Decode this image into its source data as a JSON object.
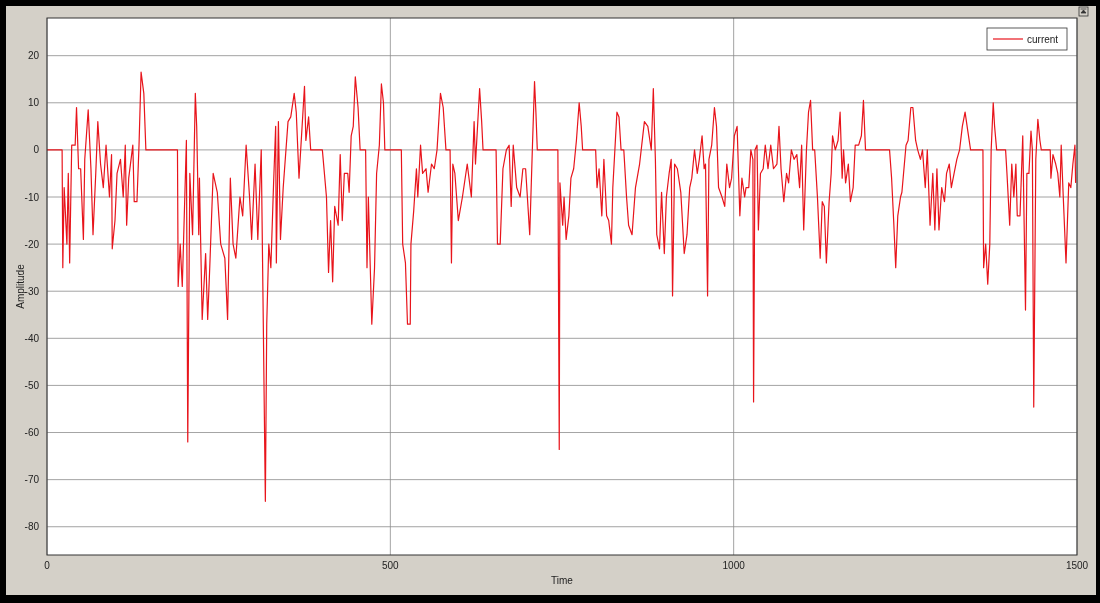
{
  "chart_data": {
    "type": "line",
    "xlabel": "Time",
    "ylabel": "Amplitude",
    "xlim": [
      0,
      1500
    ],
    "ylim": [
      -86,
      28
    ],
    "xticks": [
      0,
      500,
      1000,
      1500
    ],
    "yticks": [
      -80,
      -70,
      -60,
      -50,
      -40,
      -30,
      -20,
      -10,
      0,
      10,
      20
    ],
    "grid": true,
    "legend": "top right",
    "marker": "none",
    "line_style": "solid",
    "series": [
      {
        "name": "current",
        "color": "#e8141b",
        "x": [
          0,
          22,
          23,
          25,
          29,
          31,
          33,
          36,
          41,
          43,
          46,
          49,
          53,
          55,
          60,
          64,
          67,
          71,
          74,
          78,
          82,
          86,
          91,
          94,
          95,
          99,
          102,
          107,
          111,
          114,
          116,
          119,
          125,
          127,
          131,
          134,
          137,
          141,
          144,
          190,
          191,
          194,
          197,
          203,
          205,
          208,
          212,
          216,
          218,
          221,
          222,
          226,
          231,
          234,
          237,
          242,
          248,
          253,
          259,
          263,
          267,
          271,
          275,
          281,
          285,
          290,
          295,
          298,
          303,
          307,
          312,
          315,
          318,
          320,
          323,
          326,
          330,
          333,
          334,
          337,
          340,
          344,
          347,
          351,
          355,
          360,
          363,
          367,
          375,
          377,
          381,
          384,
          401,
          407,
          410,
          413,
          416,
          419,
          424,
          427,
          430,
          433,
          438,
          440,
          443,
          446,
          449,
          453,
          456,
          464,
          466,
          468,
          473,
          477,
          480,
          484,
          487,
          490,
          492,
          516,
          518,
          522,
          525,
          529,
          530,
          534,
          538,
          540,
          544,
          547,
          552,
          555,
          560,
          564,
          568,
          573,
          577,
          581,
          587,
          589,
          591,
          594,
          599,
          605,
          612,
          618,
          622,
          624,
          630,
          633,
          635,
          654,
          656,
          660,
          664,
          669,
          673,
          676,
          679,
          684,
          689,
          693,
          697,
          703,
          707,
          710,
          712,
          714,
          744,
          746,
          747,
          751,
          753,
          756,
          760,
          763,
          767,
          771,
          775,
          778,
          780,
          799,
          801,
          804,
          808,
          811,
          815,
          818,
          822,
          824,
          827,
          830,
          833,
          836,
          840,
          844,
          847,
          852,
          857,
          863,
          870,
          875,
          880,
          883,
          886,
          888,
          892,
          895,
          899,
          902,
          906,
          909,
          911,
          914,
          918,
          923,
          928,
          932,
          936,
          939,
          943,
          947,
          950,
          954,
          957,
          959,
          962,
          964,
          968,
          972,
          975,
          978,
          983,
          987,
          990,
          994,
          997,
          1001,
          1005,
          1009,
          1012,
          1016,
          1018,
          1022,
          1025,
          1028,
          1029,
          1031,
          1034,
          1036,
          1039,
          1043,
          1046,
          1050,
          1054,
          1058,
          1063,
          1066,
          1069,
          1073,
          1077,
          1080,
          1084,
          1088,
          1092,
          1096,
          1099,
          1102,
          1106,
          1109,
          1112,
          1115,
          1118,
          1122,
          1126,
          1129,
          1132,
          1135,
          1139,
          1142,
          1144,
          1148,
          1152,
          1155,
          1158,
          1160,
          1163,
          1167,
          1170,
          1174,
          1177,
          1182,
          1186,
          1189,
          1192,
          1227,
          1230,
          1233,
          1236,
          1239,
          1243,
          1245,
          1248,
          1251,
          1254,
          1258,
          1261,
          1265,
          1268,
          1272,
          1275,
          1279,
          1282,
          1286,
          1290,
          1293,
          1296,
          1299,
          1303,
          1307,
          1310,
          1314,
          1317,
          1321,
          1325,
          1329,
          1333,
          1337,
          1341,
          1345,
          1363,
          1364,
          1367,
          1370,
          1373,
          1375,
          1378,
          1380,
          1383,
          1396,
          1398,
          1402,
          1405,
          1408,
          1411,
          1413,
          1417,
          1421,
          1425,
          1427,
          1430,
          1433,
          1435,
          1437,
          1440,
          1443,
          1446,
          1448,
          1461,
          1462,
          1465,
          1469,
          1472,
          1475,
          1477,
          1480,
          1484,
          1488,
          1491,
          1494,
          1497,
          1498
        ],
        "values": [
          0,
          0,
          -25,
          -8,
          -20,
          -5,
          -24,
          1,
          1,
          9,
          -4,
          -4,
          -19,
          -2,
          8.5,
          -4,
          -18,
          -5,
          6,
          -3,
          -8,
          1,
          -10,
          -1,
          -21,
          -15,
          -5,
          -2,
          -10,
          1,
          -16,
          -6,
          1,
          -11,
          -11,
          1,
          16.5,
          12,
          0,
          0,
          -29,
          -20,
          -29,
          2,
          -62,
          -5,
          -18,
          12,
          5,
          -18,
          -6,
          -36,
          -22,
          -36,
          -25,
          -5,
          -9,
          -20,
          -23,
          -36,
          -6,
          -20,
          -23,
          -10,
          -14,
          1,
          -10,
          -19,
          -3,
          -19,
          0,
          -37,
          -74.6,
          -37,
          -20,
          -25,
          -7,
          5,
          -24,
          6,
          -19,
          -8,
          -2,
          6,
          7,
          12,
          8,
          -6,
          13.5,
          2,
          7,
          0,
          0,
          -10,
          -26,
          -15,
          -28,
          -12,
          -16,
          -1,
          -15,
          -5,
          -5,
          -9,
          3,
          5,
          15.5,
          9,
          0,
          0,
          -25,
          -10,
          -37,
          -25,
          -5,
          1,
          14,
          10,
          0,
          0,
          -20,
          -24,
          -37,
          -37,
          -20,
          -13,
          -4,
          -10,
          1,
          -5,
          -4,
          -9,
          -3,
          -4,
          0,
          12,
          9,
          0,
          0,
          -24,
          -3,
          -5,
          -15,
          -10,
          -3,
          -10,
          6,
          -3,
          13,
          6,
          0,
          0,
          -20,
          -20,
          -4,
          0,
          1,
          -12,
          1,
          -8,
          -10,
          -4,
          -4,
          -18,
          1,
          14.5,
          8,
          0,
          0,
          -63.6,
          -7,
          -16,
          -10,
          -19,
          -14,
          -6,
          -4,
          2,
          10,
          5,
          0,
          0,
          -8,
          -4,
          -14,
          -2,
          -14,
          -15,
          -20,
          -8,
          0,
          8,
          7,
          0,
          0,
          -10,
          -16,
          -18,
          -8,
          -3,
          6,
          5,
          0,
          13,
          -2,
          -18,
          -21,
          -9,
          -22,
          -10,
          -5,
          -2,
          -31,
          -3,
          -4,
          -9,
          -22,
          -18,
          -8,
          -6,
          0,
          -5,
          -2,
          3,
          -4,
          -3,
          -31,
          -2,
          1,
          9,
          5,
          -8,
          -10,
          -12,
          -3,
          -8,
          -6,
          3,
          5,
          -14,
          -6,
          -10,
          -8,
          -8,
          0,
          -2,
          -53.5,
          0,
          1,
          -17,
          -5,
          -4,
          1,
          -4,
          1,
          -4,
          -3,
          5,
          -4,
          -11,
          -5,
          -7,
          0,
          -2,
          -1,
          -8,
          1,
          -17,
          0,
          8,
          10.5,
          0,
          0,
          -10,
          -23,
          -11,
          -12,
          -24,
          -11,
          -5,
          3,
          0,
          2,
          8,
          -6,
          0,
          -7,
          -3,
          -11,
          -8,
          1,
          1,
          3,
          10.5,
          0,
          0,
          -6,
          -15,
          -25,
          -14,
          -10,
          -9,
          -4,
          1,
          2,
          9,
          9,
          2,
          0,
          -2,
          0,
          -8,
          0,
          -16,
          -5,
          -17,
          -4,
          -17,
          -8,
          -11,
          -5,
          -3,
          -8,
          -5,
          -2,
          0,
          5,
          8,
          4,
          0,
          0,
          -25,
          -20,
          -28.5,
          -20,
          0,
          10,
          5,
          0,
          0,
          -5,
          -16,
          -3,
          -10,
          -3,
          -14,
          -14,
          3,
          -34,
          -5,
          -5,
          4,
          0,
          -54.6,
          -2,
          6.5,
          2,
          0,
          0,
          -6,
          -1,
          -3,
          -5,
          -10,
          1,
          -10,
          -24,
          -7,
          -8,
          -3,
          1,
          -7
        ]
      }
    ]
  }
}
